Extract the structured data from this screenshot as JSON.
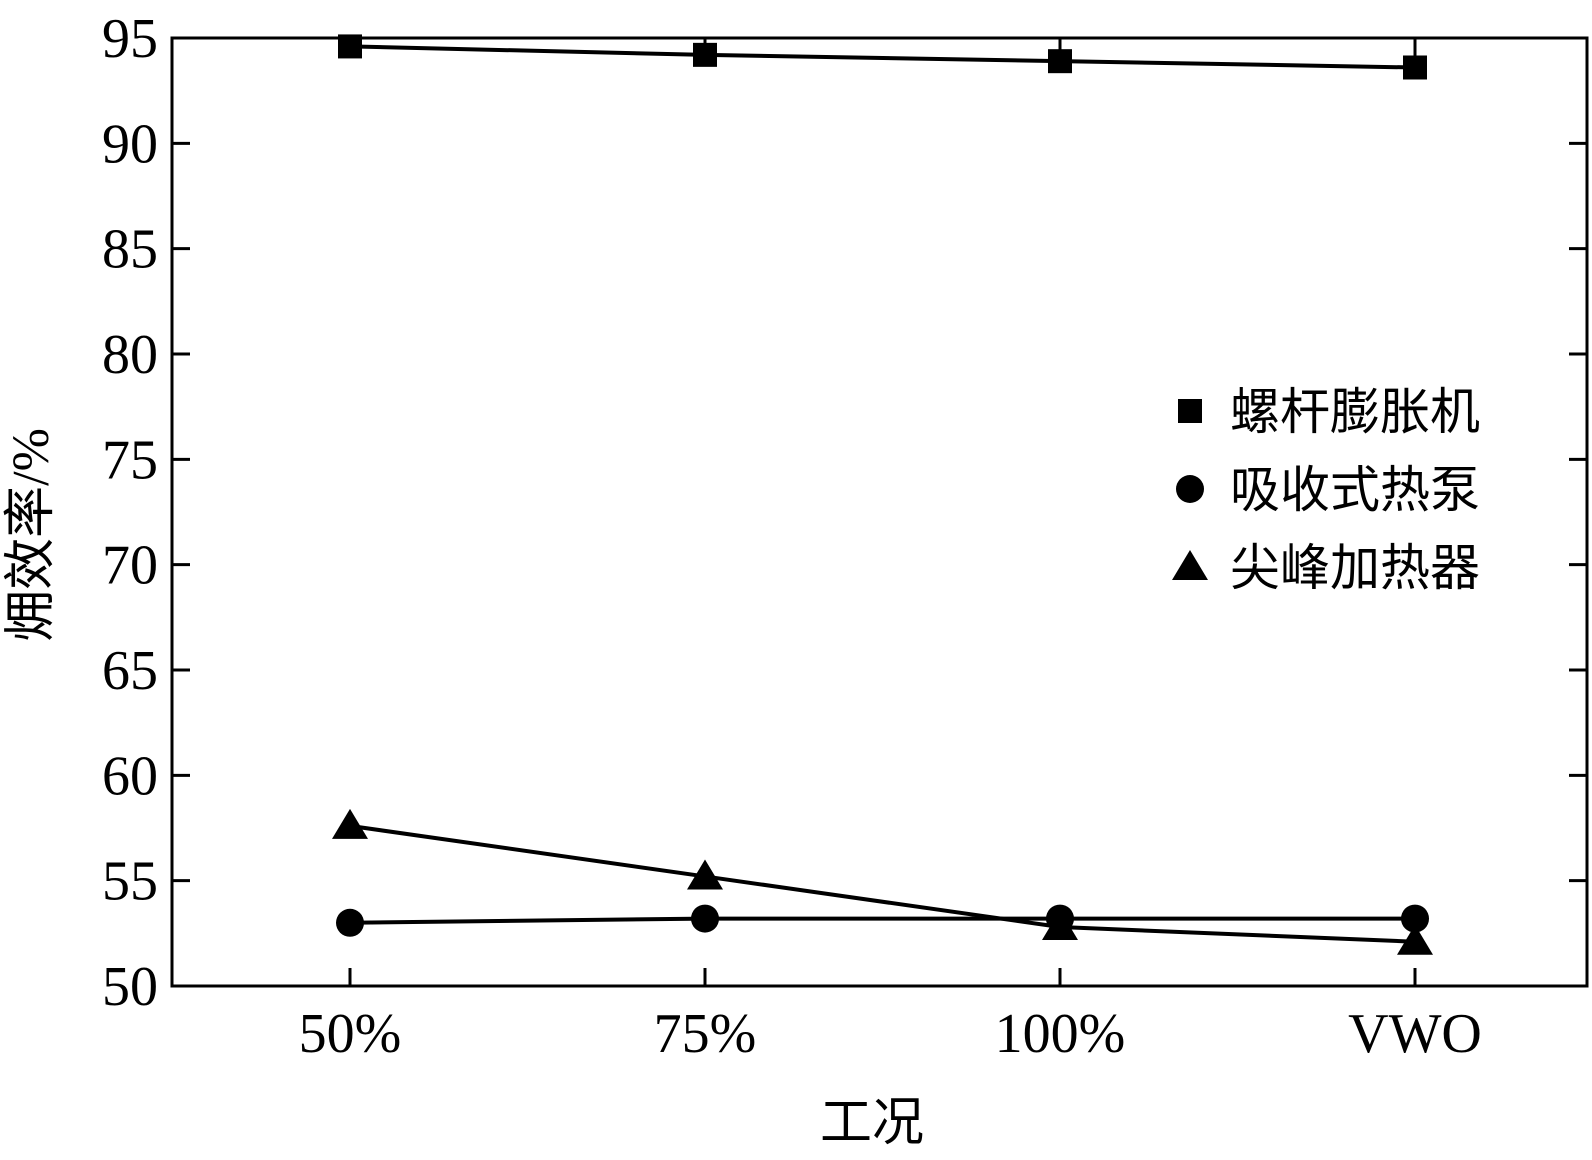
{
  "chart_data": {
    "type": "line",
    "title": "",
    "xlabel": "工况",
    "ylabel": "㶲效率/%",
    "categories": [
      "50%",
      "75%",
      "100%",
      "VWO"
    ],
    "ylim": [
      50,
      95
    ],
    "yticks": [
      50,
      55,
      60,
      65,
      70,
      75,
      80,
      85,
      90,
      95
    ],
    "grid": false,
    "legend_position": "right",
    "series": [
      {
        "name": "螺杆膨胀机",
        "marker": "square",
        "values": [
          94.6,
          94.2,
          93.9,
          93.6
        ]
      },
      {
        "name": "吸收式热泵",
        "marker": "circle",
        "values": [
          53.0,
          53.2,
          53.2,
          53.2
        ]
      },
      {
        "name": "尖峰加热器",
        "marker": "triangle",
        "values": [
          57.6,
          55.2,
          52.8,
          52.1
        ]
      }
    ]
  }
}
